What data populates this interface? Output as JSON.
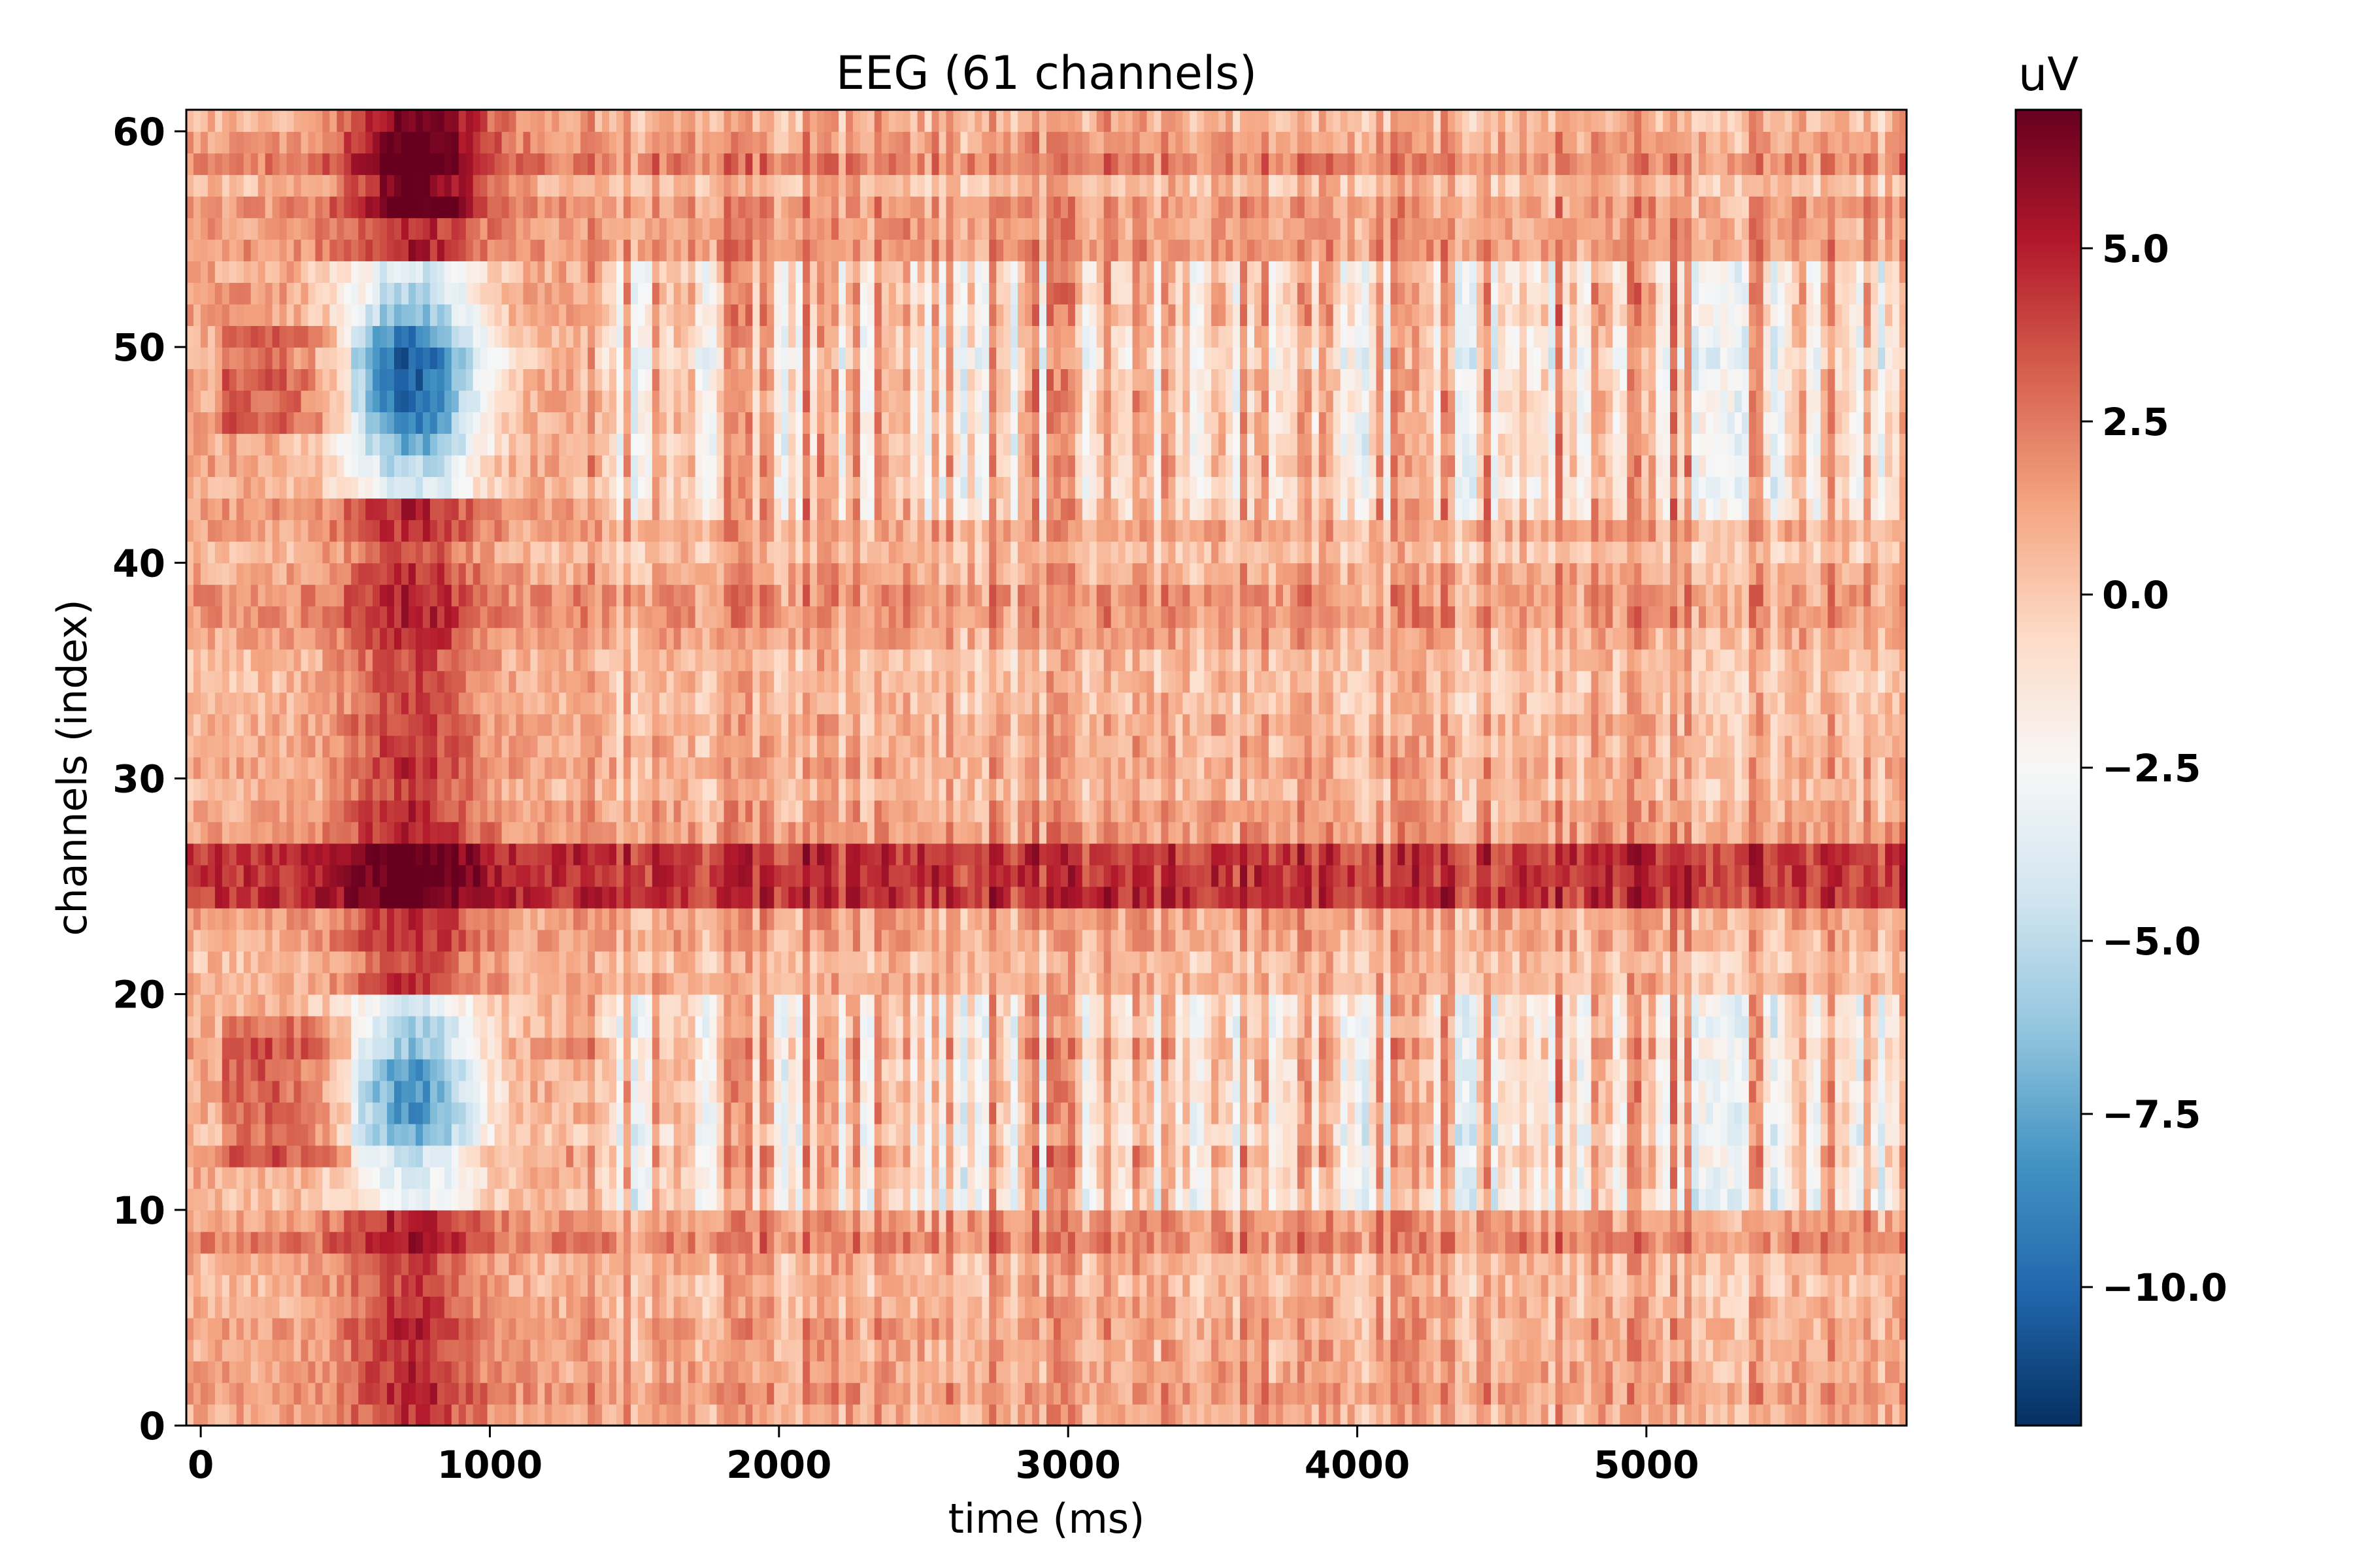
{
  "chart_data": {
    "type": "heatmap",
    "title": "EEG (61 channels)",
    "xlabel": "time (ms)",
    "ylabel": "channels (index)",
    "xlim": [
      -50,
      5900
    ],
    "ylim": [
      0,
      61
    ],
    "xticks": [
      0,
      1000,
      2000,
      3000,
      4000,
      5000
    ],
    "yticks": [
      0,
      10,
      20,
      30,
      40,
      50,
      60
    ],
    "colorbar": {
      "label": "uV",
      "colormap": "RdBu_r",
      "range": [
        -12,
        7
      ],
      "ticks": [
        5.0,
        2.5,
        0.0,
        -2.5,
        -5.0,
        -7.5,
        -10.0
      ],
      "tick_labels": [
        "5.0",
        "2.5",
        "0.0",
        "−2.5",
        "−5.0",
        "−7.5",
        "−10.0"
      ]
    },
    "grid": false,
    "n_channels": 61,
    "n_timepoints": 240,
    "baseline_uV": 1.0,
    "features": [
      {
        "description": "early negative component, upper cluster",
        "t_ms": [
          550,
          950
        ],
        "channels": [
          43,
          53
        ],
        "min_uV": -11
      },
      {
        "description": "early negative component, lower cluster",
        "t_ms": [
          550,
          950
        ],
        "channels": [
          10,
          19
        ],
        "min_uV": -9
      },
      {
        "description": "early positive component, middle channels",
        "t_ms": [
          550,
          950
        ],
        "channels": [
          20,
          42
        ],
        "max_uV": 6
      },
      {
        "description": "early positive component, top channels",
        "t_ms": [
          600,
          950
        ],
        "channels": [
          56,
          61
        ],
        "max_uV": 5
      },
      {
        "description": "sustained positive band",
        "t_ms": [
          -50,
          5900
        ],
        "channels": [
          24,
          27
        ],
        "max_uV": 6
      },
      {
        "description": "late alternating activity, upper cluster",
        "t_ms": [
          1300,
          5900
        ],
        "channels": [
          42,
          52
        ],
        "min_uV": -7
      },
      {
        "description": "late alternating activity, lower cluster",
        "t_ms": [
          1300,
          5900
        ],
        "channels": [
          10,
          19
        ],
        "min_uV": -6
      }
    ]
  }
}
